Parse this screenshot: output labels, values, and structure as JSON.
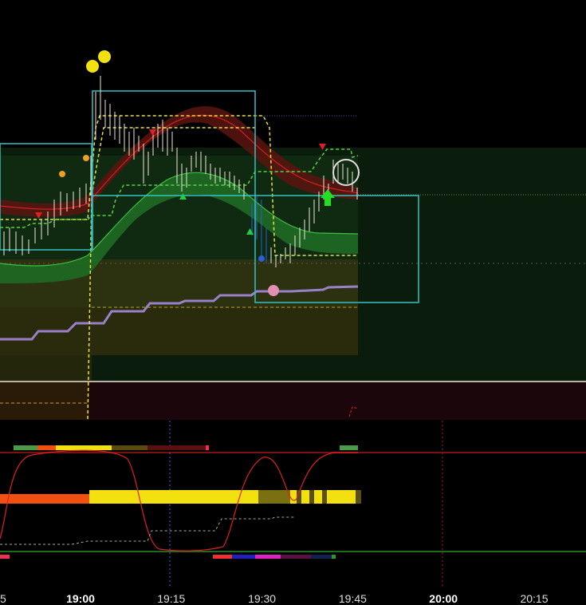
{
  "time_axis": {
    "labels": [
      {
        "text": "5",
        "bold": false
      },
      {
        "text": "19:00",
        "bold": true
      },
      {
        "text": "19:15",
        "bold": false
      },
      {
        "text": "19:30",
        "bold": false
      },
      {
        "text": "19:45",
        "bold": false
      },
      {
        "text": "20:00",
        "bold": true
      },
      {
        "text": "20:15",
        "bold": false
      }
    ]
  }
}
